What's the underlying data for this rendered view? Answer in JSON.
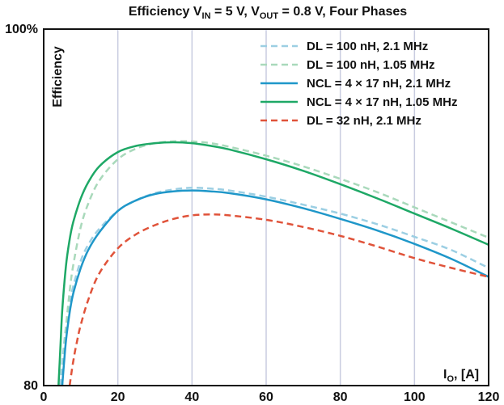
{
  "chart_data": {
    "type": "line",
    "title": {
      "prefix": "Efficiency V",
      "sub1": "IN",
      "middle": " = 5 V, V",
      "sub2": "OUT",
      "suffix": " = 0.8 V, Four Phases"
    },
    "ylabel": "Efficiency",
    "xlabel": {
      "main": "I",
      "sub": "O",
      "unit": ", [A]"
    },
    "xlim": [
      0,
      120
    ],
    "ylim": [
      80,
      100
    ],
    "x_ticks": [
      "0",
      "20",
      "40",
      "60",
      "80",
      "100",
      "120"
    ],
    "y_ticks": [
      {
        "value": 80,
        "label": "80"
      },
      {
        "value": 100,
        "label": "100%"
      }
    ],
    "grid": {
      "vertical": true,
      "horizontal": false
    },
    "legend_position": "top-right",
    "colors": {
      "light_blue": "#9ccfe3",
      "light_green": "#a9d9bb",
      "blue": "#1f97c9",
      "green": "#1ea866",
      "red": "#e0533a",
      "grid": "#c9cce0"
    },
    "series": [
      {
        "name": "DL = 100 nH, 2.1 MHz",
        "color": "#9ccfe3",
        "dashed": true,
        "x": [
          4.5,
          5,
          6,
          7,
          8,
          10,
          12,
          15,
          20,
          25,
          30,
          35,
          40,
          45,
          50,
          60,
          70,
          80,
          90,
          100,
          110,
          120
        ],
        "y": [
          80,
          81.3,
          83.3,
          84.6,
          85.6,
          87.0,
          87.9,
          88.8,
          89.8,
          90.4,
          90.8,
          91.0,
          91.1,
          91.05,
          90.95,
          90.6,
          90.15,
          89.65,
          89.05,
          88.35,
          87.6,
          86.6
        ]
      },
      {
        "name": "DL = 100 nH, 1.05 MHz",
        "color": "#a9d9bb",
        "dashed": true,
        "x": [
          5,
          5.5,
          6,
          7,
          8,
          10,
          12,
          15,
          20,
          25,
          30,
          35,
          40,
          45,
          50,
          60,
          70,
          80,
          90,
          100,
          110,
          120
        ],
        "y": [
          80,
          81.7,
          83.2,
          85.3,
          86.8,
          88.9,
          90.2,
          91.5,
          92.7,
          93.3,
          93.6,
          93.7,
          93.7,
          93.6,
          93.4,
          92.9,
          92.3,
          91.6,
          90.85,
          90.0,
          89.15,
          88.3
        ]
      },
      {
        "name": "NCL = 4 × 17 nH, 2.1 MHz",
        "color": "#1f97c9",
        "dashed": false,
        "x": [
          5,
          5.5,
          6,
          7,
          8,
          10,
          12,
          15,
          20,
          25,
          30,
          35,
          40,
          45,
          50,
          60,
          70,
          80,
          90,
          100,
          110,
          120
        ],
        "y": [
          80,
          81.3,
          82.5,
          84.1,
          85.2,
          86.6,
          87.6,
          88.6,
          89.8,
          90.4,
          90.75,
          90.9,
          90.95,
          90.9,
          90.8,
          90.45,
          89.95,
          89.35,
          88.7,
          87.95,
          87.1,
          86.1
        ]
      },
      {
        "name": "NCL = 4 × 17 nH, 1.05 MHz",
        "color": "#1ea866",
        "dashed": false,
        "x": [
          4,
          4.5,
          5,
          6,
          7,
          8,
          10,
          12,
          15,
          20,
          25,
          30,
          35,
          40,
          45,
          50,
          60,
          70,
          80,
          90,
          100,
          110,
          120
        ],
        "y": [
          80,
          82.1,
          84.2,
          86.7,
          88.2,
          89.2,
          90.5,
          91.4,
          92.3,
          93.1,
          93.45,
          93.6,
          93.65,
          93.6,
          93.45,
          93.25,
          92.7,
          92.05,
          91.3,
          90.5,
          89.65,
          88.8,
          87.9
        ]
      },
      {
        "name": "DL = 32 nH, 2.1 MHz",
        "color": "#e0533a",
        "dashed": true,
        "x": [
          7,
          8,
          9,
          10,
          12,
          15,
          20,
          25,
          30,
          35,
          40,
          45,
          50,
          60,
          70,
          80,
          90,
          100,
          110,
          120
        ],
        "y": [
          80,
          81.4,
          82.5,
          83.4,
          84.8,
          86.3,
          87.7,
          88.5,
          89.0,
          89.35,
          89.55,
          89.6,
          89.55,
          89.3,
          88.9,
          88.4,
          87.8,
          87.15,
          86.6,
          86.1
        ]
      }
    ]
  }
}
